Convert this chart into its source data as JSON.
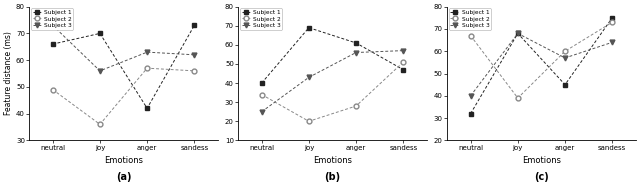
{
  "emotions": [
    "neutral",
    "joy",
    "anger",
    "sandess"
  ],
  "subplot_a": {
    "subject1": [
      66,
      70,
      42,
      73
    ],
    "subject2": [
      49,
      36,
      57,
      56
    ],
    "subject3": [
      73,
      56,
      63,
      62
    ]
  },
  "subplot_b": {
    "subject1": [
      40,
      69,
      61,
      47
    ],
    "subject2": [
      34,
      20,
      28,
      51
    ],
    "subject3": [
      25,
      43,
      56,
      57
    ]
  },
  "subplot_c": {
    "subject1": [
      32,
      68,
      45,
      75
    ],
    "subject2": [
      67,
      39,
      60,
      73
    ],
    "subject3": [
      40,
      68,
      57,
      64
    ]
  },
  "ylim_a": [
    30,
    80
  ],
  "ylim_b": [
    10,
    80
  ],
  "ylim_c": [
    20,
    80
  ],
  "yticks_a": [
    30,
    40,
    50,
    60,
    70,
    80
  ],
  "yticks_b": [
    10,
    20,
    30,
    40,
    50,
    60,
    70,
    80
  ],
  "yticks_c": [
    20,
    30,
    40,
    50,
    60,
    70,
    80
  ],
  "ylabel": "Feature distance (ms)",
  "xlabel": "Emotions",
  "subtitles": [
    "(a)",
    "(b)",
    "(c)"
  ],
  "legend_labels": [
    "Subject 1",
    "Subject 2",
    "Subject 3"
  ],
  "color_s1": "#222222",
  "color_s2": "#888888",
  "color_s3": "#555555",
  "marker_s1": "s",
  "marker_s2": "o",
  "marker_s3": "v"
}
